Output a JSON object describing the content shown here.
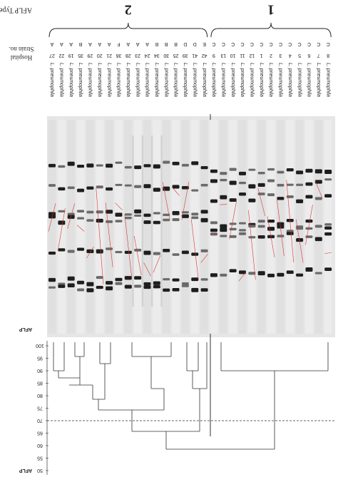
{
  "type_label": "AFLP Type",
  "groups": [
    {
      "label": "2"
    },
    {
      "label": "1"
    }
  ],
  "header": {
    "strain": "Strain no.",
    "hospital": "Hospital"
  },
  "lanes": [
    {
      "species": "L. pneumophila",
      "strain": "27",
      "hospital": "A"
    },
    {
      "species": "L. pneumophila",
      "strain": "22",
      "hospital": "A"
    },
    {
      "species": "L. pneumophila",
      "strain": "19",
      "hospital": "A"
    },
    {
      "species": "L. pneumophila",
      "strain": "35",
      "hospital": "B"
    },
    {
      "species": "L. pneumophila",
      "strain": "29",
      "hospital": "A"
    },
    {
      "species": "L. pneumophila",
      "strain": "20",
      "hospital": "A"
    },
    {
      "species": "L. pneumophila",
      "strain": "21",
      "hospital": "A"
    },
    {
      "species": "L. pneumophila",
      "strain": "36",
      "hospital": "F"
    },
    {
      "species": "L. pneumophila",
      "strain": "28",
      "hospital": "A"
    },
    {
      "species": "L. pneumophila",
      "strain": "23",
      "hospital": "A"
    },
    {
      "species": "L. pneumophila",
      "strain": "24",
      "hospital": "A"
    },
    {
      "species": "L. pneumophila",
      "strain": "34",
      "hospital": "B"
    },
    {
      "species": "L. pneumophila",
      "strain": "30",
      "hospital": "B"
    },
    {
      "species": "L. pneumophila",
      "strain": "25",
      "hospital": "B"
    },
    {
      "species": "L. pneumophila",
      "strain": "39",
      "hospital": "D"
    },
    {
      "species": "L. pneumophila",
      "strain": "41",
      "hospital": "D"
    },
    {
      "species": "L. pneumophila",
      "strain": "42",
      "hospital": "E"
    },
    {
      "species": "L. pneumophila",
      "strain": "9",
      "hospital": "C"
    },
    {
      "species": "L. pneumophila",
      "strain": "13",
      "hospital": "C"
    },
    {
      "species": "L. pneumophila",
      "strain": "10",
      "hospital": "C"
    },
    {
      "species": "L. pneumophila",
      "strain": "11",
      "hospital": "C"
    },
    {
      "species": "L. pneumophila",
      "strain": "12",
      "hospital": "C"
    },
    {
      "species": "L. pneumophila",
      "strain": "1",
      "hospital": "C"
    },
    {
      "species": "L. pneumophila",
      "strain": "2",
      "hospital": "C"
    },
    {
      "species": "L. pneumophila",
      "strain": "3",
      "hospital": "C"
    },
    {
      "species": "L. pneumophila",
      "strain": "4",
      "hospital": "C"
    },
    {
      "species": "L. pneumophila",
      "strain": "5",
      "hospital": "C"
    },
    {
      "species": "L. pneumophila",
      "strain": "6",
      "hospital": "C"
    },
    {
      "species": "L. pneumophila",
      "strain": "7",
      "hospital": "C"
    },
    {
      "species": "L. pneumophila",
      "strain": "8",
      "hospital": "C"
    }
  ],
  "gel_label": "AFLP",
  "dendrogram": {
    "label": "AFLP",
    "scale": [
      "100",
      "95",
      "90",
      "85",
      "80",
      "75",
      "70",
      "65",
      "60",
      "55",
      "50"
    ]
  }
}
